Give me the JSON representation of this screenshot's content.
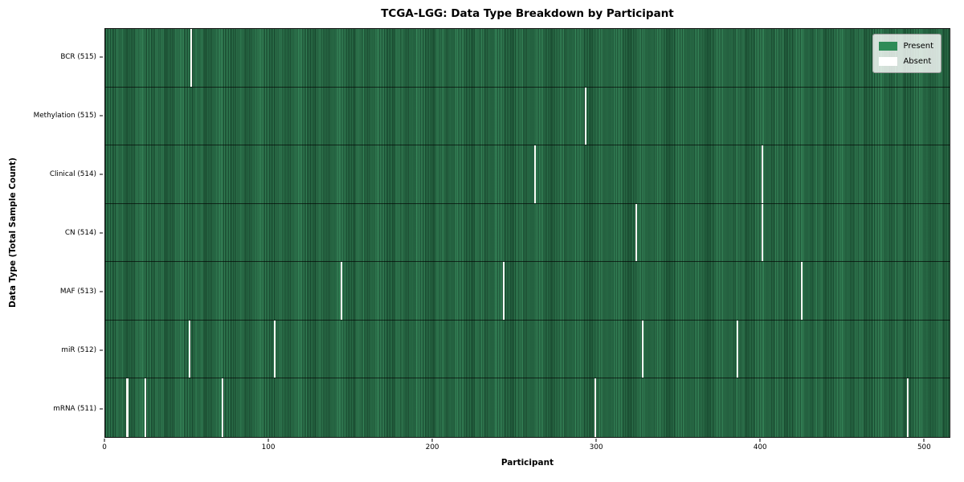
{
  "title": "TCGA-LGG: Data Type Breakdown by Participant",
  "chart_data": {
    "type": "heatmap",
    "title": "TCGA-LGG: Data Type Breakdown by Participant",
    "xlabel": "Participant",
    "ylabel": "Data Type (Total Sample Count)",
    "total_participants": 516,
    "x_range": [
      0,
      516
    ],
    "x_ticks": [
      0,
      100,
      200,
      300,
      400,
      500
    ],
    "grid": false,
    "legend_position": "upper right",
    "legend": [
      {
        "label": "Present",
        "color": "#2e8b57"
      },
      {
        "label": "Absent",
        "color": "#ffffff"
      }
    ],
    "colors": {
      "present": "#2e8b57",
      "absent": "#ffffff",
      "stripe_light": "#37875a",
      "stripe_dark": "#17492e",
      "row_separator": "rgba(0,0,0,0.65)"
    },
    "rows": [
      {
        "label": "BCR (515)",
        "data_type": "BCR",
        "present_count": 515,
        "absent_count": 1,
        "absent_participants": [
          52
        ]
      },
      {
        "label": "Methylation (515)",
        "data_type": "Methylation",
        "present_count": 515,
        "absent_count": 1,
        "absent_participants": [
          293
        ]
      },
      {
        "label": "Clinical (514)",
        "data_type": "Clinical",
        "present_count": 514,
        "absent_count": 2,
        "absent_participants": [
          262,
          401
        ]
      },
      {
        "label": "CN (514)",
        "data_type": "CN",
        "present_count": 514,
        "absent_count": 2,
        "absent_participants": [
          324,
          401
        ]
      },
      {
        "label": "MAF (513)",
        "data_type": "MAF",
        "present_count": 513,
        "absent_count": 3,
        "absent_participants": [
          144,
          243,
          425
        ]
      },
      {
        "label": "miR (512)",
        "data_type": "miR",
        "present_count": 512,
        "absent_count": 4,
        "absent_participants": [
          51,
          103,
          328,
          386
        ]
      },
      {
        "label": "mRNA (511)",
        "data_type": "mRNA",
        "present_count": 511,
        "absent_count": 5,
        "absent_participants": [
          13,
          24,
          71,
          299,
          490
        ]
      }
    ]
  }
}
